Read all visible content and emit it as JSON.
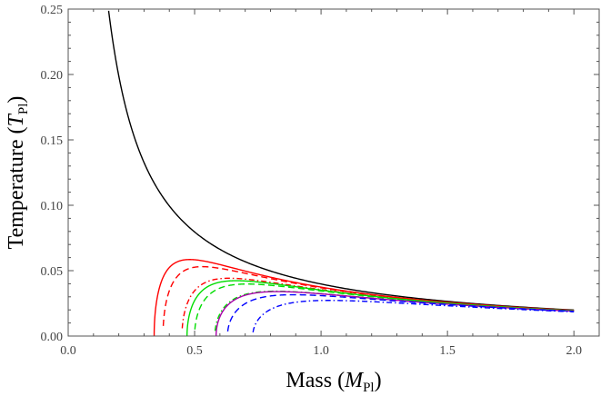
{
  "chart_data": {
    "type": "line",
    "title": "",
    "xlabel": "Mass (M_Pl)",
    "ylabel": "Temperature (T_Pl)",
    "xlabel_parts": {
      "prefix": "Mass (",
      "symbol": "M",
      "sub": "Pl",
      "suffix": ")"
    },
    "ylabel_parts": {
      "prefix": "Temperature (",
      "symbol": "T",
      "sub": "Pl",
      "suffix": ")"
    },
    "xlim": [
      0,
      2.1
    ],
    "ylim": [
      0,
      0.25
    ],
    "xticks": [
      0.0,
      0.5,
      1.0,
      1.5,
      2.0
    ],
    "xtick_labels": [
      "0.0",
      "0.5",
      "1.0",
      "1.5",
      "2.0"
    ],
    "yticks": [
      0.0,
      0.05,
      0.1,
      0.15,
      0.2,
      0.25
    ],
    "ytick_labels": [
      "0.00",
      "0.05",
      "0.10",
      "0.15",
      "0.20",
      "0.25"
    ],
    "grid": false,
    "legend": "none",
    "x_range": [
      0.15,
      2.0
    ],
    "series": [
      {
        "color": "#000000",
        "dash": "solid",
        "m0": 0,
        "x_start": 0.16
      },
      {
        "color": "#ff0000",
        "dash": "solid",
        "m0": 0.34,
        "x_start": 0.34
      },
      {
        "color": "#ff0000",
        "dash": "dashed",
        "m0": 0.375,
        "x_start": 0.376
      },
      {
        "color": "#ff0000",
        "dash": "dotdash",
        "m0": 0.45,
        "x_start": 0.451
      },
      {
        "color": "#00dd00",
        "dash": "solid",
        "m0": 0.47,
        "x_start": 0.47
      },
      {
        "color": "#00dd00",
        "dash": "dashed",
        "m0": 0.5,
        "x_start": 0.501
      },
      {
        "color": "#00dd00",
        "dash": "dotdash",
        "m0": 0.58,
        "x_start": 0.581
      },
      {
        "color": "#aa00aa",
        "dash": "solid",
        "m0": 0.585,
        "x_start": 0.585
      },
      {
        "color": "#0000ff",
        "dash": "dashed",
        "m0": 0.63,
        "x_start": 0.631
      },
      {
        "color": "#0000ff",
        "dash": "dotdash",
        "m0": 0.73,
        "x_start": 0.731
      }
    ]
  }
}
